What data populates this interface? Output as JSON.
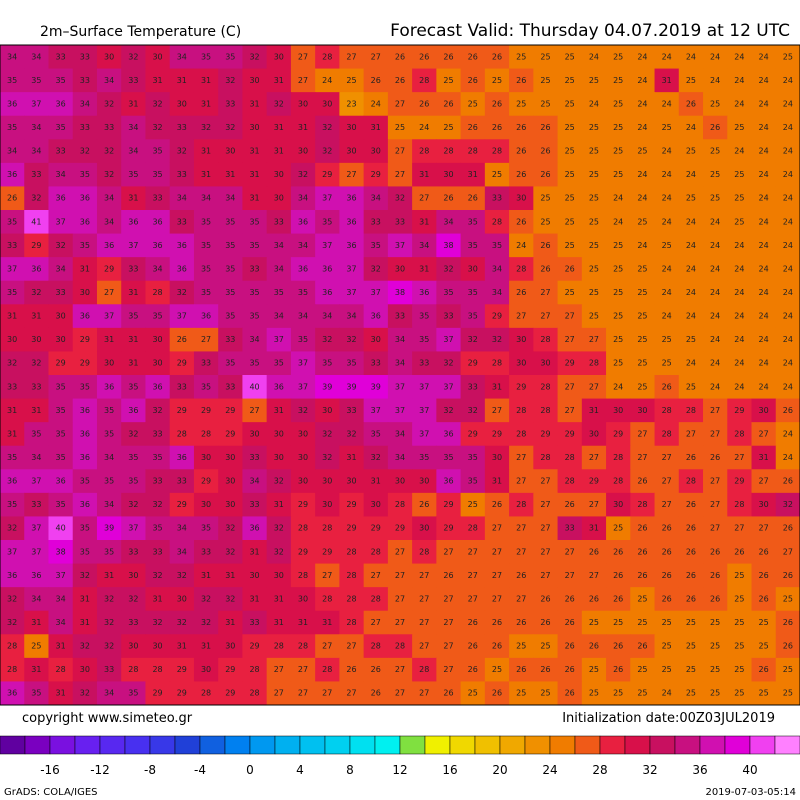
{
  "header": {
    "title": "2m–Surface Temperature (C)",
    "valid": "Forecast Valid:  Thursday 04.07.2019 at 12 UTC"
  },
  "map": {
    "values": [
      [
        34,
        34,
        33,
        33,
        30,
        32,
        30,
        34,
        35,
        35,
        32,
        30,
        27,
        28,
        27,
        27,
        26,
        26,
        26,
        26,
        26,
        25,
        25,
        25,
        24,
        25,
        24,
        24,
        24,
        24,
        24,
        24,
        25
      ],
      [
        35,
        35,
        35,
        33,
        34,
        33,
        31,
        31,
        31,
        32,
        30,
        31,
        27,
        24,
        25,
        26,
        26,
        28,
        25,
        26,
        25,
        26,
        25,
        25,
        25,
        25,
        24,
        31,
        25,
        24,
        24,
        24,
        24
      ],
      [
        36,
        37,
        36,
        34,
        32,
        31,
        32,
        30,
        31,
        33,
        31,
        32,
        30,
        30,
        23,
        24,
        27,
        26,
        26,
        25,
        26,
        25,
        25,
        25,
        24,
        25,
        24,
        24,
        26,
        25,
        24,
        24,
        24
      ],
      [
        35,
        34,
        35,
        33,
        33,
        34,
        32,
        33,
        32,
        32,
        30,
        31,
        31,
        32,
        30,
        31,
        25,
        24,
        25,
        26,
        26,
        26,
        26,
        25,
        25,
        25,
        24,
        25,
        24,
        26,
        25,
        24,
        24
      ],
      [
        34,
        34,
        33,
        32,
        32,
        34,
        35,
        32,
        31,
        30,
        31,
        31,
        30,
        32,
        30,
        30,
        27,
        28,
        28,
        28,
        28,
        26,
        26,
        25,
        25,
        25,
        25,
        24,
        25,
        25,
        24,
        24,
        24
      ],
      [
        36,
        33,
        34,
        35,
        32,
        35,
        35,
        33,
        31,
        31,
        31,
        30,
        32,
        29,
        27,
        29,
        27,
        31,
        30,
        31,
        25,
        26,
        26,
        25,
        25,
        25,
        24,
        24,
        24,
        25,
        25,
        24,
        24
      ],
      [
        26,
        32,
        36,
        36,
        34,
        31,
        33,
        34,
        34,
        34,
        31,
        30,
        34,
        37,
        36,
        34,
        32,
        27,
        26,
        26,
        33,
        30,
        25,
        25,
        25,
        24,
        24,
        24,
        25,
        25,
        25,
        24,
        24
      ],
      [
        35,
        41,
        37,
        36,
        34,
        36,
        36,
        33,
        35,
        35,
        35,
        33,
        36,
        35,
        36,
        33,
        33,
        31,
        34,
        35,
        28,
        26,
        25,
        25,
        25,
        24,
        25,
        24,
        24,
        24,
        25,
        24,
        24
      ],
      [
        33,
        29,
        32,
        35,
        36,
        37,
        36,
        36,
        35,
        35,
        35,
        34,
        34,
        37,
        36,
        35,
        37,
        34,
        38,
        35,
        35,
        24,
        26,
        25,
        25,
        25,
        24,
        25,
        24,
        24,
        24,
        24,
        24
      ],
      [
        37,
        36,
        34,
        31,
        29,
        33,
        34,
        36,
        35,
        35,
        33,
        34,
        36,
        36,
        37,
        32,
        30,
        31,
        32,
        30,
        34,
        28,
        26,
        26,
        25,
        25,
        25,
        24,
        24,
        24,
        24,
        24,
        24
      ],
      [
        35,
        32,
        33,
        30,
        27,
        31,
        28,
        32,
        35,
        35,
        35,
        35,
        35,
        36,
        37,
        37,
        38,
        36,
        35,
        35,
        34,
        26,
        27,
        25,
        25,
        25,
        25,
        24,
        24,
        24,
        24,
        24,
        24
      ],
      [
        31,
        31,
        30,
        36,
        37,
        35,
        35,
        37,
        36,
        35,
        35,
        34,
        34,
        34,
        34,
        36,
        33,
        35,
        33,
        35,
        29,
        27,
        27,
        27,
        25,
        25,
        25,
        24,
        24,
        24,
        24,
        24,
        24
      ],
      [
        30,
        30,
        30,
        29,
        31,
        31,
        30,
        26,
        27,
        33,
        34,
        37,
        35,
        32,
        32,
        30,
        34,
        35,
        37,
        32,
        32,
        30,
        28,
        27,
        27,
        25,
        25,
        25,
        25,
        24,
        24,
        24,
        24
      ],
      [
        32,
        32,
        29,
        29,
        30,
        31,
        30,
        29,
        33,
        35,
        35,
        35,
        37,
        35,
        35,
        33,
        34,
        33,
        32,
        29,
        28,
        30,
        30,
        29,
        28,
        25,
        25,
        25,
        24,
        24,
        24,
        24,
        24
      ],
      [
        33,
        33,
        35,
        35,
        36,
        35,
        36,
        33,
        35,
        33,
        40,
        36,
        37,
        39,
        39,
        39,
        37,
        37,
        37,
        33,
        31,
        29,
        28,
        27,
        27,
        24,
        25,
        26,
        25,
        24,
        24,
        24,
        24
      ],
      [
        31,
        31,
        35,
        36,
        35,
        36,
        32,
        29,
        29,
        29,
        27,
        31,
        32,
        30,
        33,
        37,
        37,
        37,
        32,
        32,
        27,
        28,
        28,
        27,
        31,
        30,
        30,
        28,
        28,
        27,
        29,
        30,
        26
      ],
      [
        31,
        35,
        35,
        36,
        35,
        32,
        33,
        28,
        28,
        29,
        30,
        30,
        30,
        32,
        32,
        35,
        34,
        37,
        36,
        29,
        29,
        28,
        29,
        29,
        30,
        29,
        27,
        28,
        27,
        27,
        28,
        27,
        24
      ],
      [
        35,
        34,
        35,
        36,
        34,
        35,
        35,
        36,
        30,
        30,
        33,
        30,
        30,
        32,
        31,
        32,
        34,
        35,
        35,
        35,
        30,
        27,
        28,
        28,
        27,
        28,
        27,
        27,
        26,
        26,
        27,
        31,
        24
      ],
      [
        36,
        37,
        36,
        35,
        35,
        35,
        33,
        33,
        29,
        30,
        34,
        32,
        30,
        30,
        30,
        31,
        30,
        30,
        36,
        35,
        31,
        27,
        27,
        28,
        29,
        28,
        26,
        27,
        28,
        27,
        29,
        27,
        26
      ],
      [
        35,
        33,
        35,
        36,
        34,
        32,
        32,
        29,
        30,
        30,
        33,
        31,
        29,
        30,
        29,
        30,
        28,
        26,
        29,
        25,
        26,
        28,
        27,
        26,
        27,
        30,
        28,
        27,
        26,
        27,
        28,
        30,
        32
      ],
      [
        32,
        37,
        40,
        35,
        39,
        37,
        35,
        34,
        35,
        32,
        36,
        32,
        28,
        28,
        29,
        29,
        29,
        30,
        29,
        28,
        27,
        27,
        27,
        33,
        31,
        25,
        26,
        26,
        26,
        27,
        27,
        27,
        26
      ],
      [
        37,
        37,
        38,
        35,
        35,
        33,
        33,
        34,
        33,
        32,
        31,
        32,
        29,
        29,
        28,
        28,
        27,
        28,
        27,
        27,
        27,
        27,
        27,
        27,
        26,
        26,
        26,
        26,
        26,
        26,
        26,
        26,
        27
      ],
      [
        36,
        36,
        37,
        32,
        31,
        30,
        32,
        32,
        31,
        31,
        30,
        30,
        28,
        27,
        28,
        27,
        27,
        27,
        26,
        27,
        27,
        26,
        27,
        27,
        27,
        26,
        26,
        26,
        26,
        26,
        25,
        26,
        26
      ],
      [
        32,
        34,
        34,
        31,
        32,
        32,
        31,
        30,
        32,
        32,
        31,
        31,
        30,
        28,
        28,
        28,
        27,
        27,
        27,
        27,
        27,
        27,
        26,
        26,
        26,
        26,
        25,
        26,
        26,
        26,
        25,
        26,
        25
      ],
      [
        32,
        31,
        34,
        31,
        32,
        33,
        32,
        32,
        32,
        31,
        33,
        31,
        31,
        31,
        28,
        27,
        27,
        27,
        27,
        26,
        26,
        26,
        26,
        26,
        25,
        25,
        25,
        25,
        25,
        25,
        25,
        25,
        26
      ],
      [
        28,
        25,
        31,
        32,
        32,
        30,
        30,
        31,
        31,
        30,
        29,
        28,
        28,
        27,
        27,
        28,
        28,
        27,
        27,
        26,
        26,
        25,
        25,
        26,
        26,
        26,
        26,
        25,
        25,
        25,
        25,
        25,
        26
      ],
      [
        28,
        31,
        28,
        30,
        33,
        28,
        28,
        29,
        30,
        29,
        28,
        27,
        27,
        28,
        26,
        26,
        27,
        28,
        27,
        26,
        25,
        26,
        26,
        26,
        25,
        26,
        25,
        25,
        25,
        25,
        25,
        26,
        25
      ],
      [
        36,
        35,
        31,
        32,
        34,
        35,
        29,
        29,
        28,
        29,
        28,
        27,
        27,
        27,
        27,
        26,
        27,
        27,
        26,
        25,
        26,
        25,
        25,
        26,
        25,
        25,
        25,
        24,
        25,
        25,
        25,
        25,
        25
      ]
    ]
  },
  "colorbar": {
    "clim": [
      -20,
      44
    ],
    "colors": [
      "#6000a0",
      "#7a00c0",
      "#7a10e0",
      "#6820f0",
      "#5828f0",
      "#4830f0",
      "#3838e8",
      "#2040d8",
      "#1060e0",
      "#0080f0",
      "#0098f0",
      "#00b0f0",
      "#00c0f0",
      "#00d0f0",
      "#00e0f0",
      "#00f0f0",
      "#80e040",
      "#f0f000",
      "#f0d800",
      "#f0c000",
      "#f0a800",
      "#f09000",
      "#f07c00",
      "#f05a18",
      "#e82040",
      "#d8104a",
      "#c81060",
      "#c81080",
      "#d010b0",
      "#e000d8",
      "#f040f0",
      "#ff80ff"
    ],
    "ticks": [
      -16,
      -12,
      -8,
      -4,
      0,
      4,
      8,
      12,
      16,
      20,
      24,
      28,
      32,
      36,
      40
    ]
  },
  "footer": {
    "copyright": "copyright www.simeteo.gr",
    "init": "Initialization date:00Z03JUL2019",
    "grads": "GrADS: COLA/IGES",
    "stamp": "2019-07-03-05:14"
  }
}
